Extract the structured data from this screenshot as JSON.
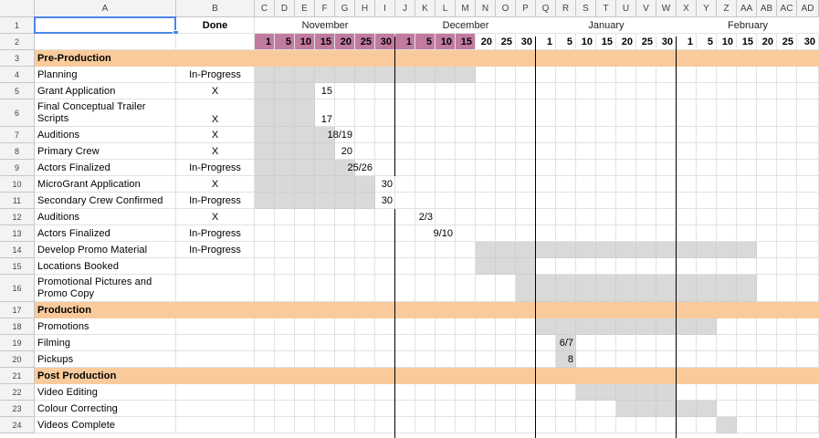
{
  "columns": [
    "A",
    "B",
    "C",
    "D",
    "E",
    "F",
    "G",
    "H",
    "I",
    "J",
    "K",
    "L",
    "M",
    "N",
    "O",
    "P",
    "Q",
    "R",
    "S",
    "T",
    "U",
    "V",
    "W",
    "X",
    "Y",
    "Z",
    "AA",
    "AB",
    "AC",
    "AD"
  ],
  "header_row": {
    "done_label": "Done",
    "months": [
      {
        "name": "November",
        "start_col": 2
      },
      {
        "name": "December",
        "start_col": 9
      },
      {
        "name": "January",
        "start_col": 16
      },
      {
        "name": "February",
        "start_col": 23
      }
    ]
  },
  "days": [
    "1",
    "5",
    "10",
    "15",
    "20",
    "25",
    "30",
    "1",
    "5",
    "10",
    "15",
    "20",
    "25",
    "30",
    "1",
    "5",
    "10",
    "15",
    "20",
    "25",
    "30",
    "1",
    "5",
    "10",
    "15",
    "20",
    "25",
    "30"
  ],
  "highlighted_days_range": [
    2,
    12
  ],
  "month_separators_after_col": [
    8,
    15,
    22
  ],
  "rows": [
    {
      "num": "1",
      "type": "months"
    },
    {
      "num": "2",
      "type": "days"
    },
    {
      "num": "3",
      "type": "section",
      "task": "Pre-Production"
    },
    {
      "num": "4",
      "task": "Planning",
      "done": "In-Progress",
      "shade": [
        2,
        12
      ]
    },
    {
      "num": "5",
      "task": "Grant Application",
      "done": "X",
      "shade": [
        2,
        4
      ],
      "note": {
        "col": 5,
        "text": "15"
      }
    },
    {
      "num": "6",
      "task": "Final Conceptual Trailer Scripts",
      "done": "X",
      "shade": [
        2,
        4
      ],
      "note": {
        "col": 5,
        "text": "17"
      },
      "tall": true
    },
    {
      "num": "7",
      "task": "Auditions",
      "done": "X",
      "shade": [
        2,
        5
      ],
      "note": {
        "col": 6,
        "text": "18/19"
      }
    },
    {
      "num": "8",
      "task": "Primary Crew",
      "done": "X",
      "shade": [
        2,
        5
      ],
      "note": {
        "col": 6,
        "text": "20"
      }
    },
    {
      "num": "9",
      "task": "Actors Finalized",
      "done": "In-Progress",
      "shade": [
        2,
        6
      ],
      "note": {
        "col": 7,
        "text": "25/26"
      }
    },
    {
      "num": "10",
      "task": "MicroGrant Application",
      "done": "X",
      "shade": [
        2,
        7
      ],
      "note": {
        "col": 8,
        "text": "30"
      }
    },
    {
      "num": "11",
      "task": "Secondary Crew Confirmed",
      "done": "In-Progress",
      "shade": [
        2,
        7
      ],
      "note": {
        "col": 8,
        "text": "30"
      }
    },
    {
      "num": "12",
      "task": "Auditions",
      "done": "X",
      "note": {
        "col": 10,
        "text": "2/3"
      }
    },
    {
      "num": "13",
      "task": "Actors Finalized",
      "done": "In-Progress",
      "note": {
        "col": 11,
        "text": "9/10"
      }
    },
    {
      "num": "14",
      "task": "Develop Promo Material",
      "done": "In-Progress",
      "shade": [
        13,
        26
      ]
    },
    {
      "num": "15",
      "task": "Locations Booked",
      "shade": [
        13,
        15
      ]
    },
    {
      "num": "16",
      "task": "Promotional Pictures and Promo Copy",
      "shade": [
        15,
        26
      ],
      "tall": true
    },
    {
      "num": "17",
      "type": "section",
      "task": "Production"
    },
    {
      "num": "18",
      "task": "Promotions",
      "shade": [
        16,
        24
      ]
    },
    {
      "num": "19",
      "task": "Filming",
      "shade": [
        17,
        17
      ],
      "note": {
        "col": 17,
        "text": "6/7"
      }
    },
    {
      "num": "20",
      "task": "Pickups",
      "shade": [
        17,
        17
      ],
      "note": {
        "col": 17,
        "text": "8"
      }
    },
    {
      "num": "21",
      "type": "section",
      "task": "Post Production"
    },
    {
      "num": "22",
      "task": "Video Editing",
      "shade": [
        18,
        22
      ]
    },
    {
      "num": "23",
      "task": "Colour Correcting",
      "shade": [
        20,
        24
      ]
    },
    {
      "num": "24",
      "task": "Videos Complete",
      "shade": [
        25,
        25
      ]
    }
  ],
  "colors": {
    "section": "#f9cb9c",
    "shade": "#d9d9d9",
    "day_highlight": "#c27ba0",
    "selection": "#4a86e8",
    "grid_header": "#f3f3f3"
  }
}
